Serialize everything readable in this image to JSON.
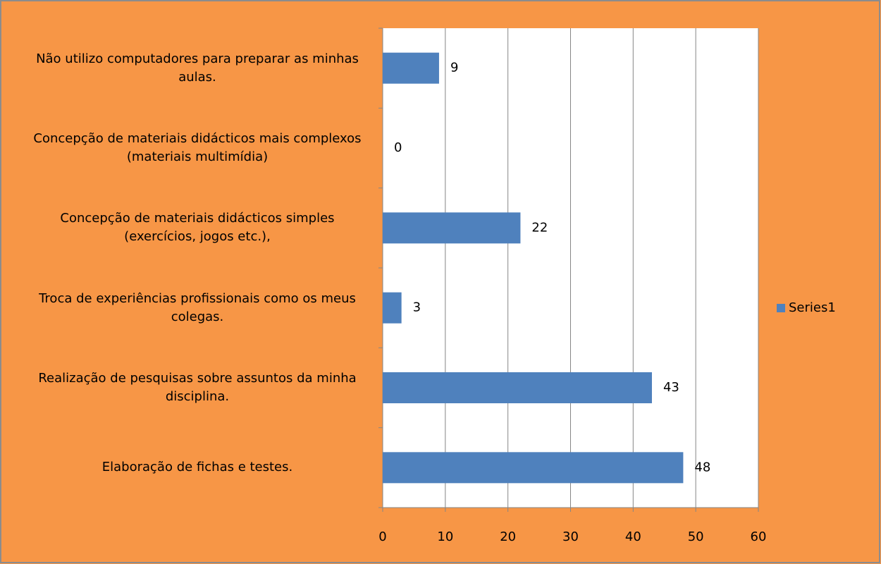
{
  "chart_data": {
    "type": "hbar",
    "categories": [
      "Não utilizo computadores para preparar as minhas aulas.",
      "Concepção de materiais didácticos mais complexos (materiais multimídia)",
      "Concepção de materiais didácticos simples (exercícios, jogos etc.),",
      "Troca de experiências profissionais como os meus colegas.",
      "Realização de pesquisas sobre assuntos da minha disciplina.",
      "Elaboração de fichas e testes."
    ],
    "series": [
      {
        "name": "Series1",
        "color": "#4f81bd",
        "values": [
          9,
          0,
          22,
          3,
          43,
          48
        ]
      }
    ],
    "xlim": [
      0,
      60
    ],
    "xticks": [
      0,
      10,
      20,
      30,
      40,
      50,
      60
    ],
    "grid": true,
    "legend": "right"
  }
}
